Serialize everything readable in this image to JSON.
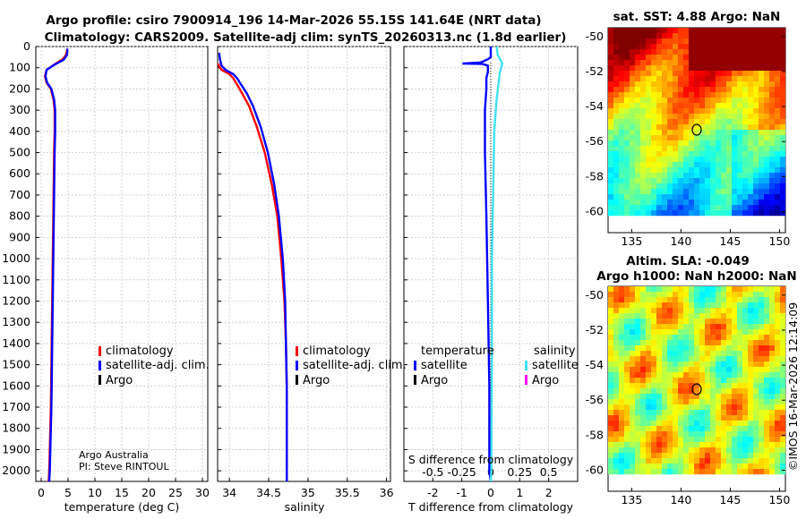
{
  "title": {
    "line1": "Argo profile: csiro 7900914_196 14-Mar-2026 55.15S 141.64E (NRT data)",
    "line2": "Climatology: CARS2009. Satellite-adj clim: synTS_20260313.nc (1.8d earlier)"
  },
  "credit": {
    "org": "Argo Australia",
    "pi": "PI: Steve RINTOUL"
  },
  "watermark": "©IMOS 16-Mar-2026 12:14:09",
  "colors": {
    "climatology": "#ff0000",
    "satellite_adj": "#0000ff",
    "argo": "#000000",
    "sal_satellite": "#40e0f0",
    "sal_argo": "#ff00ff"
  },
  "chart_data": [
    {
      "type": "line",
      "name": "temperature-profile",
      "xlabel": "temperature (deg C)",
      "ylabel": "",
      "xlim": [
        -1,
        31
      ],
      "ylim": [
        2050,
        0
      ],
      "xticks": [
        0,
        5,
        10,
        15,
        20,
        25,
        30
      ],
      "yticks": [
        0,
        100,
        200,
        300,
        400,
        500,
        600,
        700,
        800,
        900,
        1000,
        1100,
        1200,
        1300,
        1400,
        1500,
        1600,
        1700,
        1800,
        1900,
        2000
      ],
      "legend": [
        "climatology",
        "satellite-adj. clim.",
        "Argo"
      ],
      "series": [
        {
          "name": "climatology",
          "color": "#ff0000",
          "points": [
            [
              4.9,
              10
            ],
            [
              4.6,
              40
            ],
            [
              4.0,
              60
            ],
            [
              2.4,
              85
            ],
            [
              1.0,
              110
            ],
            [
              0.7,
              140
            ],
            [
              1.0,
              170
            ],
            [
              1.8,
              200
            ],
            [
              2.3,
              250
            ],
            [
              2.5,
              300
            ],
            [
              2.5,
              400
            ],
            [
              2.4,
              500
            ],
            [
              2.3,
              700
            ],
            [
              2.2,
              900
            ],
            [
              2.1,
              1100
            ],
            [
              2.0,
              1300
            ],
            [
              1.9,
              1500
            ],
            [
              1.8,
              1700
            ],
            [
              1.6,
              1900
            ],
            [
              1.5,
              2000
            ],
            [
              1.4,
              2050
            ]
          ]
        },
        {
          "name": "satellite-adj. clim.",
          "color": "#0000ff",
          "points": [
            [
              4.9,
              10
            ],
            [
              4.8,
              40
            ],
            [
              4.2,
              62
            ],
            [
              2.5,
              85
            ],
            [
              1.0,
              110
            ],
            [
              0.8,
              140
            ],
            [
              1.1,
              170
            ],
            [
              1.9,
              200
            ],
            [
              2.4,
              250
            ],
            [
              2.6,
              300
            ],
            [
              2.6,
              400
            ],
            [
              2.5,
              500
            ],
            [
              2.4,
              700
            ],
            [
              2.3,
              900
            ],
            [
              2.2,
              1100
            ],
            [
              2.1,
              1300
            ],
            [
              2.0,
              1500
            ],
            [
              1.9,
              1700
            ],
            [
              1.7,
              1900
            ],
            [
              1.6,
              2000
            ],
            [
              1.5,
              2050
            ]
          ]
        }
      ]
    },
    {
      "type": "line",
      "name": "salinity-profile",
      "xlabel": "salinity",
      "xlim": [
        33.85,
        36.05
      ],
      "ylim": [
        2050,
        0
      ],
      "xticks": [
        34,
        34.5,
        35,
        35.5,
        36
      ],
      "legend": [
        "climatology",
        "satellite-adj. clim.",
        "Argo"
      ],
      "series": [
        {
          "name": "climatology",
          "color": "#ff0000",
          "points": [
            [
              33.86,
              80
            ],
            [
              33.87,
              95
            ],
            [
              33.9,
              110
            ],
            [
              34.0,
              130
            ],
            [
              34.05,
              150
            ],
            [
              34.1,
              180
            ],
            [
              34.16,
              220
            ],
            [
              34.25,
              280
            ],
            [
              34.35,
              380
            ],
            [
              34.45,
              500
            ],
            [
              34.54,
              650
            ],
            [
              34.61,
              800
            ],
            [
              34.66,
              1000
            ],
            [
              34.7,
              1200
            ],
            [
              34.72,
              1400
            ],
            [
              34.73,
              1600
            ],
            [
              34.73,
              1800
            ],
            [
              34.73,
              2000
            ],
            [
              34.73,
              2050
            ]
          ]
        },
        {
          "name": "satellite-adj. clim.",
          "color": "#0000ff",
          "points": [
            [
              33.87,
              30
            ],
            [
              33.88,
              60
            ],
            [
              33.9,
              90
            ],
            [
              33.95,
              110
            ],
            [
              34.05,
              130
            ],
            [
              34.1,
              150
            ],
            [
              34.15,
              180
            ],
            [
              34.22,
              220
            ],
            [
              34.3,
              280
            ],
            [
              34.4,
              380
            ],
            [
              34.49,
              500
            ],
            [
              34.57,
              650
            ],
            [
              34.63,
              800
            ],
            [
              34.68,
              1000
            ],
            [
              34.71,
              1200
            ],
            [
              34.72,
              1400
            ],
            [
              34.73,
              1600
            ],
            [
              34.73,
              1800
            ],
            [
              34.73,
              2000
            ],
            [
              34.73,
              2050
            ]
          ]
        }
      ]
    },
    {
      "type": "line",
      "name": "difference-profile",
      "xlabel": "T difference from climatology",
      "xlabel_top": "S difference from climatology",
      "xlim": [
        -3,
        3
      ],
      "ylim": [
        2050,
        0
      ],
      "xticks": [
        -2,
        -1,
        0,
        1,
        2
      ],
      "xticklabels": [
        "-2",
        "-1",
        "0",
        "1",
        "2"
      ],
      "xticks_s": [
        -0.5,
        -0.25,
        0,
        0.25,
        0.5
      ],
      "xticklabels_s": [
        "-0.5",
        "-0.25",
        "0",
        "0.25",
        "0.5"
      ],
      "legend_temperature": {
        "title": "temperature",
        "entries": [
          "satellite",
          "Argo"
        ]
      },
      "legend_salinity": {
        "title": "salinity",
        "entries": [
          "satellite",
          "Argo"
        ]
      },
      "series": [
        {
          "name": "temperature satellite",
          "color": "#0000ff",
          "points": [
            [
              0,
              0
            ],
            [
              0,
              50
            ],
            [
              -0.1,
              60
            ],
            [
              -0.35,
              75
            ],
            [
              -0.95,
              80
            ],
            [
              -0.3,
              82
            ],
            [
              -0.1,
              90
            ],
            [
              -0.1,
              120
            ],
            [
              -0.15,
              150
            ],
            [
              -0.15,
              200
            ],
            [
              -0.2,
              300
            ],
            [
              -0.2,
              500
            ],
            [
              -0.15,
              800
            ],
            [
              -0.1,
              1200
            ],
            [
              -0.05,
              1600
            ],
            [
              -0.05,
              2000
            ],
            [
              0,
              2050
            ]
          ]
        },
        {
          "name": "salinity satellite",
          "color": "#40e0f0",
          "points": [
            [
              0.05,
              0
            ],
            [
              0.06,
              40
            ],
            [
              0.1,
              80
            ],
            [
              0.08,
              120
            ],
            [
              0.07,
              160
            ],
            [
              0.05,
              250
            ],
            [
              0.03,
              400
            ],
            [
              0.02,
              700
            ],
            [
              0.01,
              1000
            ],
            [
              0.01,
              1500
            ],
            [
              0.005,
              2000
            ],
            [
              0,
              2050
            ]
          ]
        }
      ]
    },
    {
      "type": "heatmap",
      "name": "sst-map",
      "title": "sat. SST: 4.88 Argo: NaN",
      "xticks": [
        135,
        140,
        145,
        150
      ],
      "yticks": [
        -50,
        -52,
        -54,
        -56,
        -58,
        -60
      ],
      "marker": [
        141.64,
        -55.15
      ]
    },
    {
      "type": "heatmap",
      "name": "sla-map",
      "title_line1": "Altim. SLA: -0.049",
      "title_line2": "Argo h1000: NaN h2000: NaN",
      "xticks": [
        135,
        140,
        145,
        150
      ],
      "yticks": [
        -50,
        -52,
        -54,
        -56,
        -58,
        -60
      ],
      "marker": [
        141.64,
        -55.15
      ]
    }
  ]
}
